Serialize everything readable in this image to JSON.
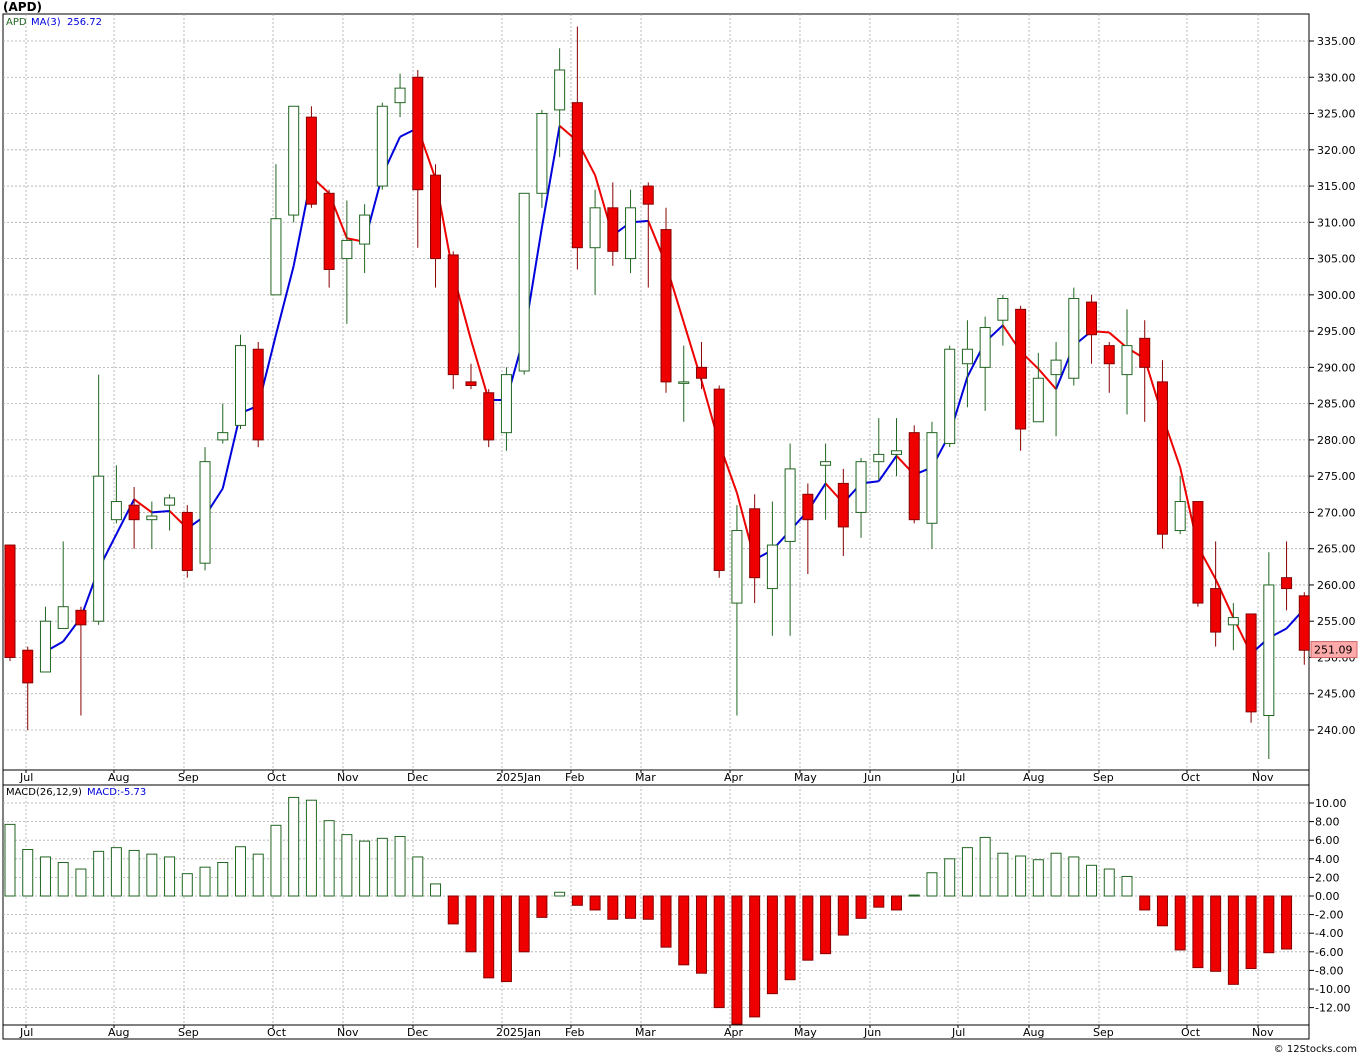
{
  "header": {
    "symbol": "(APD)"
  },
  "legend": {
    "symbol": "APD",
    "ma_label": "MA(3)",
    "ma_value": "256.72",
    "macd_label": "MACD(26,12,9)",
    "macd_value_label": "MACD:-5.73"
  },
  "footer": {
    "credit": "© 12Stocks.com"
  },
  "last_price_label": "251.09",
  "colors": {
    "up": "#226622",
    "down": "#ee0000",
    "ma_up": "#0000dd",
    "ma_down": "#ee0000",
    "grid": "#aaaaaa",
    "price_badge": "#ffaaaa"
  },
  "chart_data": [
    {
      "type": "candlestick",
      "title": "(APD)",
      "x_labels": [
        "Jul",
        "Aug",
        "Sep",
        "Oct",
        "Nov",
        "Dec",
        "2025Jan",
        "Feb",
        "Mar",
        "Apr",
        "May",
        "Jun",
        "Jul",
        "Aug",
        "Sep",
        "Oct",
        "Nov"
      ],
      "y_ticks": [
        240,
        245,
        250,
        255,
        260,
        265,
        270,
        275,
        280,
        285,
        290,
        295,
        300,
        305,
        310,
        315,
        320,
        325,
        330,
        335
      ],
      "ylim": [
        235.5,
        338.2
      ],
      "candles": [
        {
          "o": 265.5,
          "h": 265.5,
          "l": 249.5,
          "c": 250.0
        },
        {
          "o": 251.0,
          "h": 251.5,
          "l": 240.0,
          "c": 246.5
        },
        {
          "o": 248.0,
          "h": 257.0,
          "l": 248.0,
          "c": 255.0
        },
        {
          "o": 254.0,
          "h": 266.0,
          "l": 254.0,
          "c": 257.0
        },
        {
          "o": 256.5,
          "h": 257.0,
          "l": 242.0,
          "c": 254.5
        },
        {
          "o": 255.0,
          "h": 289.0,
          "l": 254.5,
          "c": 275.0
        },
        {
          "o": 269.0,
          "h": 276.5,
          "l": 268.5,
          "c": 271.5
        },
        {
          "o": 271.0,
          "h": 273.5,
          "l": 265.0,
          "c": 269.0
        },
        {
          "o": 269.0,
          "h": 271.5,
          "l": 265.0,
          "c": 269.5
        },
        {
          "o": 271.0,
          "h": 272.5,
          "l": 267.5,
          "c": 272.0
        },
        {
          "o": 270.0,
          "h": 271.0,
          "l": 261.0,
          "c": 262.0
        },
        {
          "o": 263.0,
          "h": 279.0,
          "l": 262.0,
          "c": 277.0
        },
        {
          "o": 280.0,
          "h": 285.0,
          "l": 279.5,
          "c": 281.0
        },
        {
          "o": 282.0,
          "h": 294.5,
          "l": 281.5,
          "c": 293.0
        },
        {
          "o": 292.5,
          "h": 293.5,
          "l": 279.0,
          "c": 280.0
        },
        {
          "o": 300.0,
          "h": 318.0,
          "l": 300.0,
          "c": 310.5
        },
        {
          "o": 311.0,
          "h": 326.0,
          "l": 310.0,
          "c": 326.0
        },
        {
          "o": 324.5,
          "h": 326.0,
          "l": 312.0,
          "c": 312.5
        },
        {
          "o": 314.0,
          "h": 314.5,
          "l": 301.0,
          "c": 303.5
        },
        {
          "o": 305.0,
          "h": 313.0,
          "l": 296.0,
          "c": 307.5
        },
        {
          "o": 307.0,
          "h": 312.5,
          "l": 303.0,
          "c": 311.0
        },
        {
          "o": 315.0,
          "h": 326.5,
          "l": 314.5,
          "c": 326.0
        },
        {
          "o": 326.5,
          "h": 330.5,
          "l": 324.5,
          "c": 328.5
        },
        {
          "o": 330.0,
          "h": 331.0,
          "l": 306.5,
          "c": 314.5
        },
        {
          "o": 316.5,
          "h": 318.0,
          "l": 301.0,
          "c": 305.0
        },
        {
          "o": 305.5,
          "h": 306.0,
          "l": 287.0,
          "c": 289.0
        },
        {
          "o": 288.0,
          "h": 290.5,
          "l": 287.0,
          "c": 287.5
        },
        {
          "o": 286.5,
          "h": 287.0,
          "l": 279.0,
          "c": 280.0
        },
        {
          "o": 281.0,
          "h": 290.0,
          "l": 278.5,
          "c": 289.0
        },
        {
          "o": 289.5,
          "h": 314.0,
          "l": 289.0,
          "c": 314.0
        },
        {
          "o": 314.0,
          "h": 325.5,
          "l": 312.0,
          "c": 325.0
        },
        {
          "o": 325.5,
          "h": 334.0,
          "l": 319.0,
          "c": 331.0
        },
        {
          "o": 326.5,
          "h": 337.0,
          "l": 303.5,
          "c": 306.5
        },
        {
          "o": 306.5,
          "h": 314.5,
          "l": 300.0,
          "c": 312.0
        },
        {
          "o": 312.0,
          "h": 315.5,
          "l": 304.0,
          "c": 306.0
        },
        {
          "o": 305.0,
          "h": 314.5,
          "l": 303.0,
          "c": 312.0
        },
        {
          "o": 315.0,
          "h": 315.5,
          "l": 301.0,
          "c": 312.5
        },
        {
          "o": 309.0,
          "h": 312.0,
          "l": 286.5,
          "c": 288.0
        },
        {
          "o": 288.0,
          "h": 293.0,
          "l": 282.5,
          "c": 288.0
        },
        {
          "o": 290.0,
          "h": 293.5,
          "l": 287.0,
          "c": 288.5
        },
        {
          "o": 287.0,
          "h": 287.5,
          "l": 261.0,
          "c": 262.0
        },
        {
          "o": 257.5,
          "h": 271.0,
          "l": 242.0,
          "c": 267.5
        },
        {
          "o": 270.5,
          "h": 272.5,
          "l": 257.5,
          "c": 261.0
        },
        {
          "o": 259.5,
          "h": 271.5,
          "l": 253.0,
          "c": 265.5
        },
        {
          "o": 266.0,
          "h": 279.5,
          "l": 253.0,
          "c": 276.0
        },
        {
          "o": 272.5,
          "h": 274.0,
          "l": 261.5,
          "c": 269.0
        },
        {
          "o": 276.5,
          "h": 279.5,
          "l": 269.0,
          "c": 277.0
        },
        {
          "o": 274.0,
          "h": 276.0,
          "l": 264.0,
          "c": 268.0
        },
        {
          "o": 270.0,
          "h": 277.5,
          "l": 266.5,
          "c": 277.0
        },
        {
          "o": 277.0,
          "h": 283.0,
          "l": 274.5,
          "c": 278.0
        },
        {
          "o": 278.0,
          "h": 283.0,
          "l": 275.0,
          "c": 278.5
        },
        {
          "o": 281.0,
          "h": 282.0,
          "l": 268.5,
          "c": 269.0
        },
        {
          "o": 268.5,
          "h": 282.5,
          "l": 265.0,
          "c": 281.0
        },
        {
          "o": 279.5,
          "h": 293.0,
          "l": 279.0,
          "c": 292.5
        },
        {
          "o": 290.5,
          "h": 296.5,
          "l": 284.5,
          "c": 292.5
        },
        {
          "o": 290.0,
          "h": 297.0,
          "l": 284.0,
          "c": 295.5
        },
        {
          "o": 296.5,
          "h": 300.0,
          "l": 293.0,
          "c": 299.5
        },
        {
          "o": 298.0,
          "h": 298.5,
          "l": 278.5,
          "c": 281.5
        },
        {
          "o": 282.5,
          "h": 292.0,
          "l": 282.5,
          "c": 288.5
        },
        {
          "o": 289.0,
          "h": 293.5,
          "l": 280.5,
          "c": 291.0
        },
        {
          "o": 288.5,
          "h": 301.0,
          "l": 287.5,
          "c": 299.5
        },
        {
          "o": 299.0,
          "h": 300.0,
          "l": 290.5,
          "c": 294.5
        },
        {
          "o": 293.0,
          "h": 293.5,
          "l": 286.5,
          "c": 290.5
        },
        {
          "o": 289.0,
          "h": 298.0,
          "l": 283.5,
          "c": 293.0
        },
        {
          "o": 294.0,
          "h": 296.5,
          "l": 282.5,
          "c": 290.0
        },
        {
          "o": 288.0,
          "h": 291.0,
          "l": 265.0,
          "c": 267.0
        },
        {
          "o": 267.5,
          "h": 275.0,
          "l": 267.0,
          "c": 271.5
        },
        {
          "o": 271.5,
          "h": 271.5,
          "l": 257.0,
          "c": 257.5
        },
        {
          "o": 259.5,
          "h": 266.0,
          "l": 251.5,
          "c": 253.5
        },
        {
          "o": 254.5,
          "h": 257.5,
          "l": 251.0,
          "c": 255.5
        },
        {
          "o": 256.0,
          "h": 256.0,
          "l": 241.0,
          "c": 242.5
        },
        {
          "o": 242.0,
          "h": 264.5,
          "l": 236.0,
          "c": 260.0
        },
        {
          "o": 261.0,
          "h": 266.0,
          "l": 256.5,
          "c": 259.5
        },
        {
          "o": 258.5,
          "h": 259.0,
          "l": 249.0,
          "c": 251.0
        }
      ],
      "ma3": [
        null,
        null,
        250.8,
        252.2,
        255.5,
        262.2,
        267.0,
        271.8,
        270.0,
        270.2,
        267.8,
        269.5,
        273.3,
        283.7,
        284.7,
        294.5,
        304.0,
        316.3,
        314.0,
        307.8,
        307.3,
        316.5,
        321.8,
        323.0,
        316.0,
        302.8,
        293.8,
        285.5,
        285.5,
        294.3,
        309.3,
        323.3,
        321.2,
        316.5,
        308.2,
        310.0,
        310.2,
        304.2,
        296.2,
        288.2,
        279.5,
        272.7,
        263.5,
        264.8,
        267.5,
        270.2,
        274.0,
        271.3,
        274.0,
        274.3,
        277.8,
        275.2,
        276.2,
        280.8,
        288.7,
        293.5,
        295.8,
        292.2,
        289.8,
        287.0,
        293.0,
        295.0,
        294.8,
        292.7,
        291.2,
        283.3,
        276.2,
        265.3,
        260.8,
        255.5,
        250.5,
        252.7,
        254.0,
        256.7
      ],
      "current_price": 251.09,
      "ma_current": 256.72
    },
    {
      "type": "bar",
      "title": "MACD(26,12,9)",
      "x_labels": [
        "Jul",
        "Aug",
        "Sep",
        "Oct",
        "Nov",
        "Dec",
        "2025Jan",
        "Feb",
        "Mar",
        "Apr",
        "May",
        "Jun",
        "Jul",
        "Aug",
        "Sep",
        "Oct",
        "Nov"
      ],
      "y_ticks": [
        10,
        8,
        6,
        4,
        2,
        0,
        -2,
        -4,
        -6,
        -8,
        -10,
        -12
      ],
      "ylim": [
        -13.5,
        11.5
      ],
      "values": [
        7.7,
        5.0,
        4.2,
        3.6,
        2.9,
        4.8,
        5.2,
        4.9,
        4.5,
        4.2,
        2.4,
        3.1,
        3.6,
        5.3,
        4.5,
        7.6,
        10.6,
        10.3,
        8.1,
        6.6,
        5.9,
        6.2,
        6.4,
        4.2,
        1.3,
        -3.0,
        -6.0,
        -8.8,
        -9.2,
        -6.0,
        -2.3,
        0.4,
        -1.0,
        -1.5,
        -2.5,
        -2.4,
        -2.5,
        -5.5,
        -7.4,
        -8.3,
        -12.0,
        -14.0,
        -13.0,
        -10.5,
        -9.0,
        -6.9,
        -6.2,
        -4.2,
        -2.4,
        -1.2,
        -1.5,
        0.1,
        2.5,
        4.0,
        5.2,
        6.3,
        4.6,
        4.3,
        3.9,
        4.6,
        4.2,
        3.3,
        2.9,
        2.1,
        -1.5,
        -3.2,
        -5.8,
        -7.7,
        -8.1,
        -9.5,
        -7.8,
        -6.1,
        -5.7
      ],
      "current_value": -5.73
    }
  ]
}
